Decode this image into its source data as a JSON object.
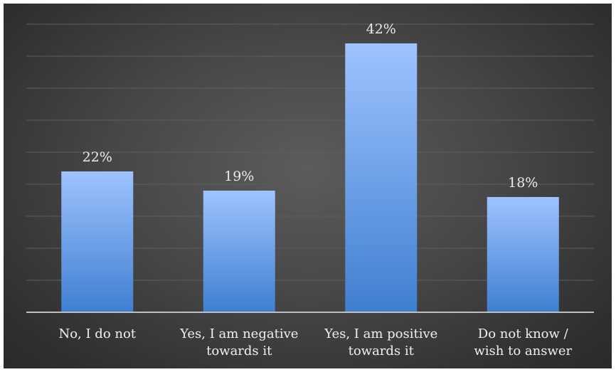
{
  "chart_data": {
    "type": "bar",
    "categories": [
      [
        "No, I do not"
      ],
      [
        "Yes, I am negative",
        "towards it"
      ],
      [
        "Yes, I am positive",
        "towards it"
      ],
      [
        "Do not know /",
        "wish to answer"
      ]
    ],
    "values": [
      22,
      19,
      42,
      18
    ],
    "value_labels": [
      "22%",
      "19%",
      "42%",
      "18%"
    ],
    "value_unit": "%",
    "ylim": [
      0,
      45
    ],
    "grid": true,
    "legend": "none",
    "colors": {
      "bar_top": "#9ec3ff",
      "bar_bottom": "#3f7fd0",
      "gridline": "#5e5e5e",
      "axis": "#bfbfbf",
      "text": "#eaeaea"
    }
  }
}
